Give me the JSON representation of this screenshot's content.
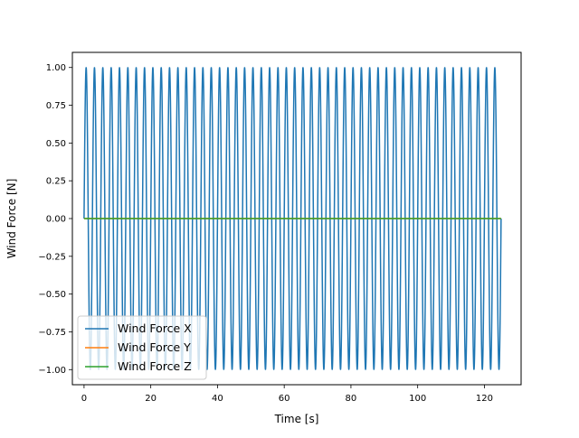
{
  "chart_data": {
    "type": "line",
    "title": "",
    "xlabel": "Time [s]",
    "ylabel": "Wind Force [N]",
    "xlim": [
      -3.5,
      131
    ],
    "ylim": [
      -1.1,
      1.1
    ],
    "xticks": [
      0,
      20,
      40,
      60,
      80,
      100,
      120
    ],
    "xtick_labels": [
      "0",
      "20",
      "40",
      "60",
      "80",
      "100",
      "120"
    ],
    "yticks": [
      -1.0,
      -0.75,
      -0.5,
      -0.25,
      0.0,
      0.25,
      0.5,
      0.75,
      1.0
    ],
    "ytick_labels": [
      "−1.00",
      "−0.75",
      "−0.50",
      "−0.25",
      "0.00",
      "0.25",
      "0.50",
      "0.75",
      "1.00"
    ],
    "grid": false,
    "legend_position": "lower-left",
    "x_range": [
      0,
      125
    ],
    "series": [
      {
        "name": "Wind Force X",
        "color": "#1f77b4",
        "function": "sin",
        "amplitude": 1.0,
        "frequency_hz": 0.4,
        "offset": 0.0
      },
      {
        "name": "Wind Force Y",
        "color": "#ff7f0e",
        "function": "constant",
        "value": 0.0
      },
      {
        "name": "Wind Force Z",
        "color": "#2ca02c",
        "function": "constant",
        "value": 0.0
      }
    ]
  }
}
